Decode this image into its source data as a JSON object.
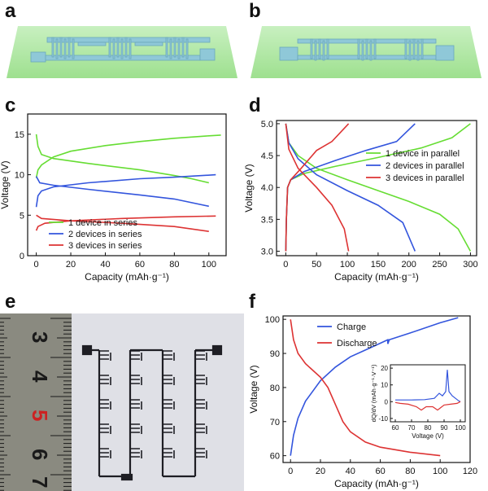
{
  "panels": {
    "a": "a",
    "b": "b",
    "c": "c",
    "d": "d",
    "e": "e",
    "f": "f"
  },
  "photo_e": {
    "ruler_numbers": [
      "3",
      "4",
      "5",
      "6",
      "7"
    ]
  },
  "chart_data": [
    {
      "id": "c",
      "type": "line",
      "xlabel": "Capacity (mAh·g⁻¹)",
      "ylabel": "Voltage (V)",
      "xlim": [
        -5,
        110
      ],
      "ylim": [
        0,
        17.5
      ],
      "xticks": [
        0,
        20,
        40,
        60,
        80,
        100
      ],
      "yticks": [
        0,
        5,
        10,
        15
      ],
      "legend_position": "lower-left",
      "series": [
        {
          "name": "1 device in series",
          "color": "#66dd33",
          "charge": [
            [
              0,
              9.6
            ],
            [
              1,
              10.6
            ],
            [
              3,
              11.2
            ],
            [
              10,
              12.2
            ],
            [
              20,
              12.9
            ],
            [
              40,
              13.6
            ],
            [
              60,
              14.1
            ],
            [
              80,
              14.5
            ],
            [
              100,
              14.8
            ],
            [
              107,
              14.9
            ]
          ],
          "discharge": [
            [
              0,
              15.0
            ],
            [
              1,
              13.5
            ],
            [
              3,
              12.5
            ],
            [
              10,
              12.0
            ],
            [
              30,
              11.4
            ],
            [
              60,
              10.6
            ],
            [
              80,
              9.9
            ],
            [
              90,
              9.5
            ],
            [
              100,
              9.0
            ]
          ]
        },
        {
          "name": "2 devices in series",
          "color": "#3355dd",
          "charge": [
            [
              0,
              6.0
            ],
            [
              1,
              7.4
            ],
            [
              3,
              8.0
            ],
            [
              10,
              8.5
            ],
            [
              30,
              9.0
            ],
            [
              60,
              9.5
            ],
            [
              80,
              9.7
            ],
            [
              104,
              10.0
            ]
          ],
          "discharge": [
            [
              0,
              9.8
            ],
            [
              2,
              9.0
            ],
            [
              10,
              8.7
            ],
            [
              30,
              8.2
            ],
            [
              60,
              7.5
            ],
            [
              80,
              7.0
            ],
            [
              100,
              6.1
            ]
          ]
        },
        {
          "name": "3 devices in series",
          "color": "#dd3333",
          "charge": [
            [
              0,
              3.1
            ],
            [
              1,
              3.6
            ],
            [
              5,
              4.0
            ],
            [
              20,
              4.3
            ],
            [
              50,
              4.6
            ],
            [
              80,
              4.8
            ],
            [
              104,
              4.9
            ]
          ],
          "discharge": [
            [
              0,
              5.0
            ],
            [
              3,
              4.6
            ],
            [
              20,
              4.3
            ],
            [
              50,
              4.0
            ],
            [
              80,
              3.6
            ],
            [
              100,
              3.0
            ]
          ]
        }
      ]
    },
    {
      "id": "d",
      "type": "line",
      "xlabel": "Capacity (mAh·g⁻¹)",
      "ylabel": "Voltage (V)",
      "xlim": [
        -15,
        310
      ],
      "ylim": [
        2.93,
        5.05
      ],
      "xticks": [
        0,
        50,
        100,
        150,
        200,
        250,
        300
      ],
      "yticks": [
        3.0,
        3.5,
        4.0,
        4.5,
        5.0
      ],
      "legend_position": "center-right",
      "series": [
        {
          "name": "1 device in parallel",
          "color": "#66dd33",
          "charge": [
            [
              0,
              3.0
            ],
            [
              1,
              3.5
            ],
            [
              3,
              4.0
            ],
            [
              8,
              4.12
            ],
            [
              30,
              4.22
            ],
            [
              80,
              4.33
            ],
            [
              150,
              4.47
            ],
            [
              220,
              4.62
            ],
            [
              270,
              4.78
            ],
            [
              300,
              5.0
            ]
          ],
          "discharge": [
            [
              0,
              5.0
            ],
            [
              5,
              4.7
            ],
            [
              20,
              4.5
            ],
            [
              50,
              4.3
            ],
            [
              100,
              4.12
            ],
            [
              150,
              3.95
            ],
            [
              200,
              3.78
            ],
            [
              250,
              3.58
            ],
            [
              280,
              3.35
            ],
            [
              300,
              3.0
            ]
          ]
        },
        {
          "name": "2 devices in parallel",
          "color": "#3355dd",
          "charge": [
            [
              0,
              3.0
            ],
            [
              1,
              3.5
            ],
            [
              3,
              4.0
            ],
            [
              8,
              4.12
            ],
            [
              30,
              4.25
            ],
            [
              80,
              4.42
            ],
            [
              130,
              4.58
            ],
            [
              180,
              4.72
            ],
            [
              210,
              5.0
            ]
          ],
          "discharge": [
            [
              0,
              5.0
            ],
            [
              5,
              4.7
            ],
            [
              20,
              4.45
            ],
            [
              50,
              4.2
            ],
            [
              100,
              3.95
            ],
            [
              150,
              3.72
            ],
            [
              190,
              3.45
            ],
            [
              210,
              3.0
            ]
          ]
        },
        {
          "name": "3 devices in parallel",
          "color": "#dd3333",
          "charge": [
            [
              0,
              3.0
            ],
            [
              1,
              3.5
            ],
            [
              3,
              4.0
            ],
            [
              8,
              4.12
            ],
            [
              25,
              4.3
            ],
            [
              50,
              4.58
            ],
            [
              75,
              4.72
            ],
            [
              102,
              5.0
            ]
          ],
          "discharge": [
            [
              0,
              5.0
            ],
            [
              5,
              4.6
            ],
            [
              20,
              4.3
            ],
            [
              50,
              4.0
            ],
            [
              75,
              3.72
            ],
            [
              95,
              3.35
            ],
            [
              102,
              3.0
            ]
          ]
        }
      ]
    },
    {
      "id": "f",
      "type": "line",
      "xlabel": "Capacity (mAh·g⁻¹)",
      "ylabel": "Voltage (V)",
      "xlim": [
        -5,
        120
      ],
      "ylim": [
        58,
        101
      ],
      "xticks": [
        0,
        20,
        40,
        60,
        80,
        100,
        120
      ],
      "yticks": [
        60,
        70,
        80,
        90,
        100
      ],
      "legend_position": "upper-left",
      "series": [
        {
          "name": "Charge",
          "color": "#3355dd",
          "values": [
            [
              0,
              60
            ],
            [
              2,
              66
            ],
            [
              5,
              71
            ],
            [
              10,
              76
            ],
            [
              20,
              82
            ],
            [
              30,
              86
            ],
            [
              40,
              89
            ],
            [
              50,
              91
            ],
            [
              60,
              93
            ],
            [
              65,
              94
            ],
            [
              65,
              92.8
            ],
            [
              66,
              94
            ],
            [
              80,
              96
            ],
            [
              100,
              99
            ],
            [
              112,
              100.5
            ]
          ]
        },
        {
          "name": "Discharge",
          "color": "#dd3333",
          "values": [
            [
              0,
              100
            ],
            [
              2,
              94
            ],
            [
              5,
              90
            ],
            [
              10,
              87
            ],
            [
              20,
              83
            ],
            [
              25,
              80
            ],
            [
              30,
              75
            ],
            [
              35,
              70
            ],
            [
              40,
              67
            ],
            [
              50,
              64
            ],
            [
              60,
              62.5
            ],
            [
              80,
              61
            ],
            [
              100,
              60
            ]
          ]
        }
      ],
      "inset": {
        "type": "line",
        "xlabel": "Voltage (V)",
        "ylabel": "dQ/dV (mAh·g⁻¹·V⁻¹)",
        "xlim": [
          57,
          103
        ],
        "ylim": [
          -12,
          22
        ],
        "xticks": [
          60,
          70,
          80,
          90,
          100
        ],
        "yticks": [
          -10,
          0,
          10,
          20
        ],
        "series": [
          {
            "name": "Charge",
            "color": "#3355dd",
            "values": [
              [
                60,
                1
              ],
              [
                70,
                1
              ],
              [
                78,
                1.2
              ],
              [
                84,
                2
              ],
              [
                87,
                5
              ],
              [
                89,
                3.5
              ],
              [
                91,
                6
              ],
              [
                92,
                19
              ],
              [
                93,
                6
              ],
              [
                95,
                3.5
              ],
              [
                97,
                2
              ],
              [
                99,
                0.5
              ],
              [
                100,
                0
              ]
            ]
          },
          {
            "name": "Discharge",
            "color": "#dd3333",
            "values": [
              [
                100,
                0
              ],
              [
                98,
                -1
              ],
              [
                94,
                -1.5
              ],
              [
                90,
                -2
              ],
              [
                88,
                -3.5
              ],
              [
                86,
                -5
              ],
              [
                83,
                -3
              ],
              [
                79,
                -3
              ],
              [
                76,
                -5
              ],
              [
                73,
                -3
              ],
              [
                68,
                -1.5
              ],
              [
                63,
                -1
              ],
              [
                60,
                -0.5
              ]
            ]
          }
        ]
      }
    }
  ]
}
